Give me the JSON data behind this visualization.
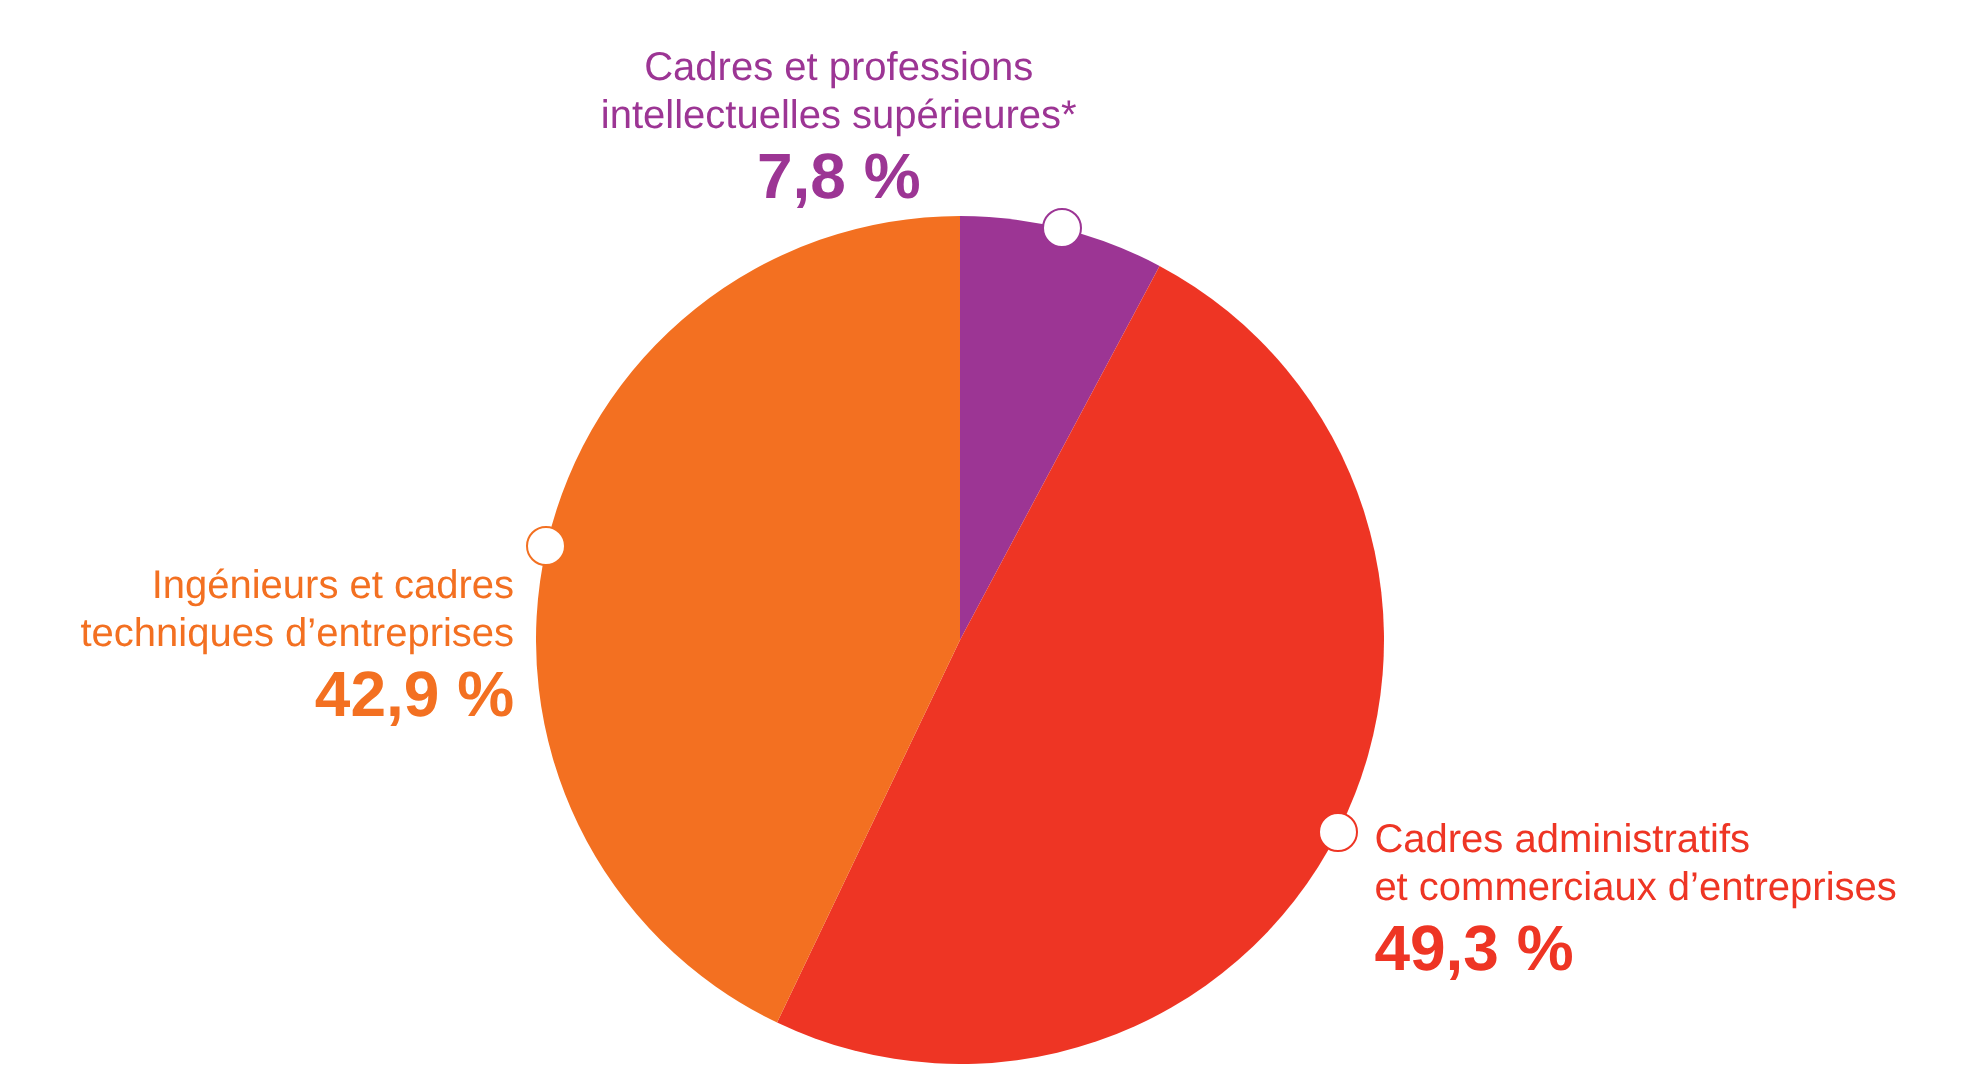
{
  "chart_data": {
    "type": "pie",
    "categories": [
      "Cadres et professions\nintellectuelles supérieures*",
      "Cadres administratifs\net commerciaux d’entreprises",
      "Ingénieurs et cadres\ntechniques d’entreprises"
    ],
    "values": [
      7.8,
      49.3,
      42.9
    ],
    "colors": [
      "#9c3594",
      "#ee3524",
      "#f37021"
    ],
    "value_labels": [
      "7,8 %",
      "49,3 %",
      "42,9 %"
    ]
  }
}
